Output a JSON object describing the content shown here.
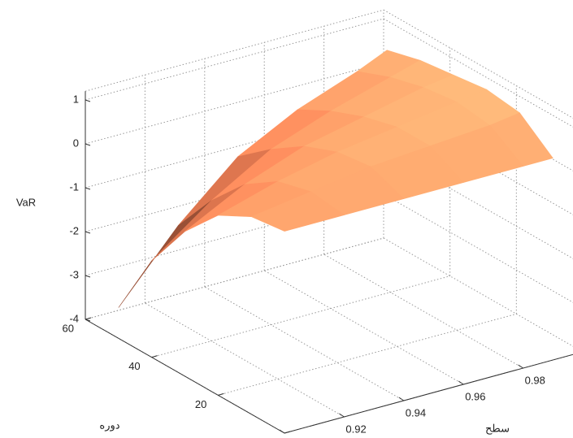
{
  "chart_data": {
    "type": "surface",
    "xlabel": "سطح",
    "ylabel": "دوره",
    "zlabel": "VaR",
    "x": [
      0.9,
      0.92,
      0.94,
      0.96,
      0.98,
      0.99
    ],
    "y": [
      0,
      10,
      20,
      30,
      40,
      50
    ],
    "z": [
      [
        0.6,
        0.6,
        0.6,
        0.6,
        0.6,
        0.6
      ],
      [
        0.5,
        0.7,
        0.9,
        1.0,
        1.1,
        1.2
      ],
      [
        0.1,
        0.5,
        0.8,
        1.0,
        1.2,
        1.3
      ],
      [
        -0.7,
        0,
        0.5,
        0.8,
        1.1,
        1.2
      ],
      [
        -1.8,
        -0.8,
        0,
        0.5,
        0.9,
        1.1
      ],
      [
        -3.3,
        -1.8,
        -0.6,
        0.1,
        0.6,
        0.9
      ]
    ],
    "xlim": [
      0.9,
      1.0
    ],
    "xticks": [
      0.9,
      0.92,
      0.94,
      0.96,
      0.98
    ],
    "ylim": [
      0,
      60
    ],
    "yticks": [
      0,
      20,
      40,
      60
    ],
    "zlim": [
      -4,
      1.2
    ],
    "zticks": [
      -4,
      -3,
      -2,
      -1,
      0,
      1
    ],
    "grid": true,
    "colormap": "copper"
  }
}
